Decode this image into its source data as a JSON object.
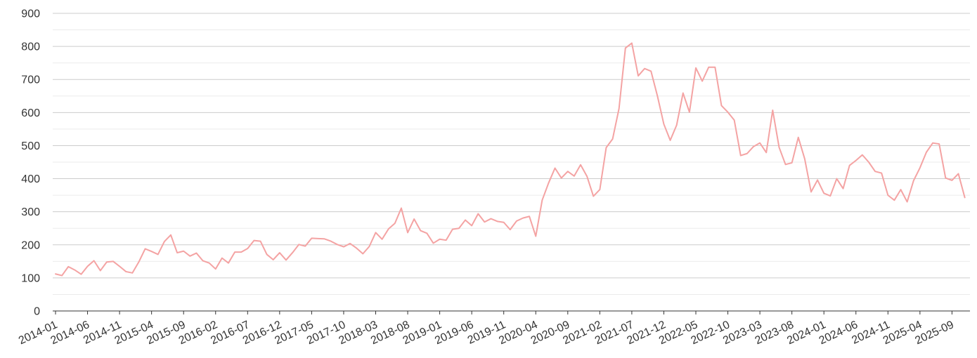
{
  "chart_data": {
    "type": "line",
    "title": "",
    "xlabel": "",
    "ylabel": "",
    "ylim": [
      0,
      900
    ],
    "yticks": [
      0,
      100,
      200,
      300,
      400,
      500,
      600,
      700,
      800,
      900
    ],
    "minor_grid": true,
    "grid": true,
    "legend": "none",
    "x_start": "2014-01",
    "x_end": "2025-11",
    "xticks": [
      "2014-01",
      "2014-06",
      "2014-11",
      "2015-04",
      "2015-09",
      "2016-02",
      "2016-07",
      "2016-12",
      "2017-05",
      "2017-10",
      "2018-03",
      "2018-08",
      "2019-01",
      "2019-06",
      "2019-11",
      "2020-04",
      "2020-09",
      "2021-02",
      "2021-07",
      "2021-12",
      "2022-05",
      "2022-10",
      "2023-03",
      "2023-08",
      "2024-01",
      "2024-06",
      "2024-11",
      "2025-04",
      "2025-09"
    ],
    "series": [
      {
        "color": "#f4a3a3",
        "values": [
          112,
          107,
          134,
          124,
          111,
          135,
          152,
          122,
          148,
          150,
          135,
          119,
          115,
          148,
          188,
          180,
          171,
          210,
          230,
          176,
          181,
          166,
          175,
          152,
          145,
          127,
          160,
          145,
          178,
          178,
          189,
          213,
          211,
          171,
          155,
          176,
          154,
          176,
          201,
          196,
          220,
          219,
          218,
          211,
          201,
          194,
          204,
          190,
          173,
          195,
          237,
          217,
          248,
          265,
          311,
          237,
          278,
          243,
          235,
          205,
          217,
          214,
          247,
          250,
          275,
          258,
          294,
          269,
          279,
          271,
          268,
          246,
          272,
          281,
          286,
          226,
          335,
          387,
          432,
          402,
          422,
          408,
          442,
          407,
          347,
          367,
          494,
          520,
          612,
          795,
          810,
          711,
          733,
          725,
          650,
          565,
          516,
          562,
          659,
          601,
          735,
          695,
          737,
          737,
          621,
          601,
          577,
          470,
          476,
          497,
          508,
          479,
          607,
          495,
          443,
          448,
          525,
          460,
          360,
          396,
          356,
          348,
          400,
          370,
          440,
          455,
          472,
          450,
          422,
          417,
          350,
          335,
          367,
          330,
          394,
          433,
          480,
          508,
          505,
          402,
          395,
          415,
          343
        ]
      }
    ]
  }
}
